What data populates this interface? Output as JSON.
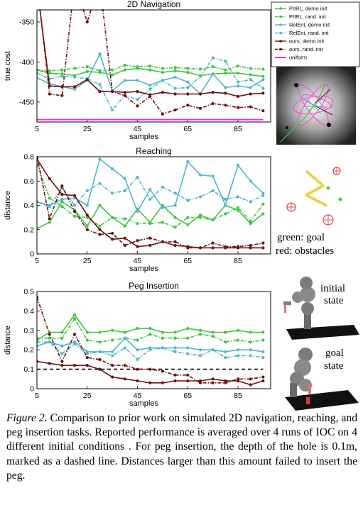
{
  "colors": {
    "piirl": "#3cc83c",
    "relent": "#4fb6cc",
    "ours": "#6e0f0f",
    "uniform": "#ff22d4",
    "threshold": "#000000"
  },
  "legend": [
    {
      "label": "PIIRL, demo init",
      "color": "#3cc83c",
      "style": "solid"
    },
    {
      "label": "PIIRL, rand. init",
      "color": "#3cc83c",
      "style": "dashdot"
    },
    {
      "label": "RelEnt, demo init",
      "color": "#4fb6cc",
      "style": "solid"
    },
    {
      "label": "RelEnt, rand. init",
      "color": "#4fb6cc",
      "style": "dashdot"
    },
    {
      "label": "ours, demo init",
      "color": "#6e0f0f",
      "style": "solid"
    },
    {
      "label": "ours, rand. init",
      "color": "#6e0f0f",
      "style": "dashdot"
    },
    {
      "label": "uniform",
      "color": "#ff22d4",
      "style": "solid"
    }
  ],
  "chart_data": [
    {
      "type": "line",
      "title": "2D Navigation",
      "xlabel": "samples",
      "ylabel": "true cost",
      "xlim": [
        5,
        98
      ],
      "ylim": [
        -475,
        -335
      ],
      "xticks": [
        5,
        25,
        45,
        65,
        85
      ],
      "yticks": [
        -350,
        -400,
        -450
      ],
      "x": [
        5,
        10,
        15,
        20,
        25,
        30,
        35,
        40,
        45,
        50,
        55,
        60,
        65,
        70,
        75,
        80,
        85,
        90,
        95
      ],
      "series": [
        {
          "name": "PIIRL, demo init",
          "values": [
            -410,
            -414,
            -415,
            -417,
            -412,
            -413,
            -416,
            -410,
            -408,
            -410,
            -413,
            -411,
            -413,
            -417,
            -415,
            -414,
            -414,
            -416,
            -418
          ]
        },
        {
          "name": "PIIRL, rand. init",
          "values": [
            -410,
            -411,
            -410,
            -408,
            -406,
            -411,
            -410,
            -404,
            -406,
            -405,
            -408,
            -407,
            -408,
            -409,
            -406,
            -410,
            -405,
            -408,
            -409
          ]
        },
        {
          "name": "RelEnt, demo init",
          "values": [
            -420,
            -427,
            -431,
            -434,
            -423,
            -390,
            -436,
            -423,
            -423,
            -429,
            -423,
            -419,
            -425,
            -440,
            -415,
            -432,
            -430,
            -432,
            -422
          ]
        },
        {
          "name": "RelEnt, rand. init",
          "values": [
            -414,
            -421,
            -418,
            -419,
            -421,
            -428,
            -460,
            -442,
            -447,
            -434,
            -423,
            -433,
            -432,
            -418,
            -395,
            -399,
            -425,
            -422,
            -433
          ]
        },
        {
          "name": "ours, demo init",
          "values": [
            -305,
            -430,
            -431,
            -431,
            -422,
            -437,
            -437,
            -438,
            -437,
            -441,
            -438,
            -440,
            -440,
            -440,
            -438,
            -439,
            -443,
            -440,
            -439
          ]
        },
        {
          "name": "ours, rand. init",
          "values": [
            -300,
            -440,
            -442,
            -300,
            -350,
            -300,
            -437,
            -442,
            -455,
            -443,
            -465,
            -460,
            -454,
            -458,
            -452,
            -454,
            -457,
            -456,
            -461
          ]
        },
        {
          "name": "uniform",
          "values": [
            -472,
            -472,
            -472,
            -472,
            -472,
            -472,
            -472,
            -472,
            -472,
            -472,
            -472,
            -472,
            -472,
            -472,
            -472,
            -472,
            -472,
            -472,
            -472
          ]
        }
      ]
    },
    {
      "type": "line",
      "title": "Reaching",
      "xlabel": "samples",
      "ylabel": "distance",
      "xlim": [
        5,
        98
      ],
      "ylim": [
        0,
        0.8
      ],
      "xticks": [
        5,
        25,
        45,
        65,
        85
      ],
      "yticks": [
        0,
        0.2,
        0.4,
        0.6,
        0.8
      ],
      "x": [
        5,
        10,
        15,
        20,
        25,
        30,
        35,
        40,
        45,
        50,
        55,
        60,
        65,
        70,
        75,
        80,
        85,
        90,
        95
      ],
      "series": [
        {
          "name": "PIIRL, demo init",
          "values": [
            0.21,
            0.26,
            0.43,
            0.36,
            0.23,
            0.4,
            0.3,
            0.23,
            0.37,
            0.26,
            0.4,
            0.3,
            0.24,
            0.32,
            0.28,
            0.4,
            0.36,
            0.25,
            0.33
          ]
        },
        {
          "name": "PIIRL, rand. init",
          "values": [
            0.74,
            0.46,
            0.39,
            0.31,
            0.3,
            0.23,
            0.3,
            0.29,
            0.25,
            0.25,
            0.26,
            0.22,
            0.3,
            0.3,
            0.28,
            0.33,
            0.38,
            0.27,
            0.41
          ]
        },
        {
          "name": "RelEnt, demo init",
          "values": [
            0.43,
            0.4,
            0.45,
            0.46,
            0.4,
            0.78,
            0.7,
            0.62,
            0.35,
            0.53,
            0.38,
            0.4,
            0.76,
            0.65,
            0.64,
            0.4,
            0.73,
            0.6,
            0.5
          ]
        },
        {
          "name": "RelEnt, rand. init",
          "values": [
            0.43,
            0.39,
            0.54,
            0.4,
            0.52,
            0.58,
            0.5,
            0.52,
            0.63,
            0.45,
            0.55,
            0.5,
            0.44,
            0.47,
            0.52,
            0.45,
            0.47,
            0.43,
            0.48
          ]
        },
        {
          "name": "ours, demo init",
          "values": [
            0.78,
            0.62,
            0.49,
            0.48,
            0.32,
            0.2,
            0.12,
            0.13,
            0.06,
            0.07,
            0.1,
            0.07,
            0.06,
            0.05,
            0.05,
            0.05,
            0.05,
            0.05,
            0.05
          ]
        },
        {
          "name": "ours, rand. init",
          "values": [
            0.81,
            0.29,
            0.56,
            0.35,
            0.2,
            0.16,
            0.17,
            0.07,
            0.11,
            0.13,
            0.1,
            0.1,
            0.05,
            0.05,
            0.09,
            0.06,
            0.06,
            0.07,
            0.09
          ]
        }
      ]
    },
    {
      "type": "line",
      "title": "Peg Insertion",
      "xlabel": "samples",
      "ylabel": "distance",
      "xlim": [
        5,
        98
      ],
      "ylim": [
        0,
        0.5
      ],
      "xticks": [
        5,
        25,
        45,
        65,
        85
      ],
      "yticks": [
        0,
        0.1,
        0.2,
        0.3,
        0.4,
        0.5
      ],
      "threshold": 0.1,
      "x": [
        5,
        10,
        15,
        20,
        25,
        30,
        35,
        40,
        45,
        50,
        55,
        60,
        65,
        70,
        75,
        80,
        85,
        90,
        95
      ],
      "series": [
        {
          "name": "PIIRL, demo init",
          "values": [
            0.25,
            0.29,
            0.29,
            0.38,
            0.29,
            0.29,
            0.3,
            0.29,
            0.31,
            0.31,
            0.29,
            0.29,
            0.31,
            0.3,
            0.29,
            0.29,
            0.3,
            0.29,
            0.29
          ]
        },
        {
          "name": "PIIRL, rand. init",
          "values": [
            0.26,
            0.26,
            0.26,
            0.36,
            0.25,
            0.24,
            0.25,
            0.26,
            0.25,
            0.28,
            0.26,
            0.26,
            0.26,
            0.28,
            0.27,
            0.24,
            0.25,
            0.24,
            0.25
          ]
        },
        {
          "name": "RelEnt, demo init",
          "values": [
            0.22,
            0.24,
            0.22,
            0.24,
            0.19,
            0.19,
            0.19,
            0.26,
            0.2,
            0.21,
            0.21,
            0.21,
            0.21,
            0.2,
            0.2,
            0.19,
            0.2,
            0.2,
            0.19
          ]
        },
        {
          "name": "RelEnt, rand. init",
          "values": [
            0.24,
            0.24,
            0.18,
            0.23,
            0.18,
            0.19,
            0.17,
            0.21,
            0.15,
            0.2,
            0.21,
            0.19,
            0.18,
            0.17,
            0.2,
            0.16,
            0.17,
            0.17,
            0.16
          ]
        },
        {
          "name": "ours, demo init",
          "values": [
            0.14,
            0.13,
            0.12,
            0.12,
            0.12,
            0.1,
            0.06,
            0.05,
            0.04,
            0.03,
            0.03,
            0.04,
            0.04,
            0.04,
            0.05,
            0.04,
            0.04,
            0.02,
            0.04
          ]
        },
        {
          "name": "ours, rand. init",
          "values": [
            0.47,
            0.28,
            0.14,
            0.28,
            0.16,
            0.15,
            0.12,
            0.12,
            0.1,
            0.1,
            0.09,
            0.07,
            0.07,
            0.03,
            0.03,
            0.03,
            0.05,
            0.05,
            0.06
          ]
        }
      ]
    }
  ],
  "annotations": {
    "green_goal": "green: goal",
    "red_obstacles": "red: obstacles",
    "initial": "initial",
    "initial_state": "state",
    "goal": "goal",
    "goal_state": "state"
  },
  "caption": {
    "label": "Figure 2.",
    "text": " Comparison to prior work on simulated 2D navigation, reaching, and peg insertion tasks. Reported performance is averaged over 4 runs of IOC on 4 different initial conditions . For peg insertion, the depth of the hole is 0.1m, marked as a dashed line. Distances larger than this amount failed to insert the peg."
  }
}
